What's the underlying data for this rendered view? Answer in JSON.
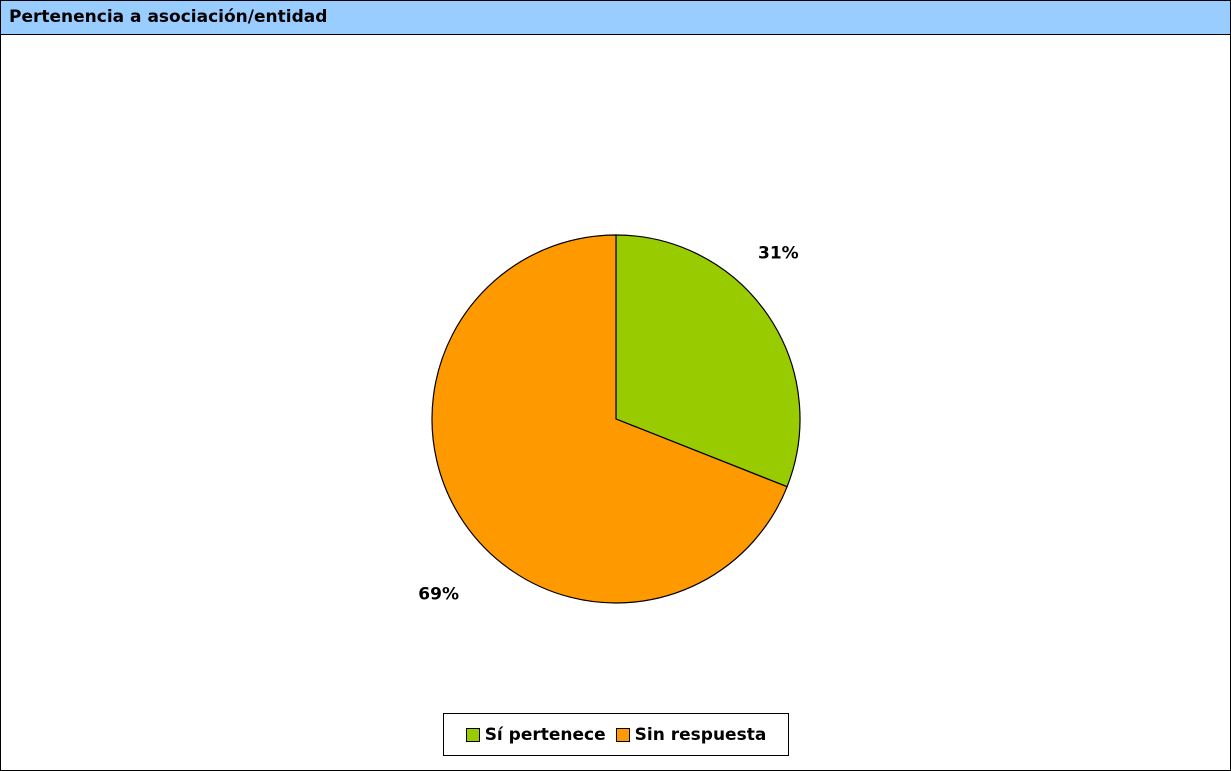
{
  "header": {
    "title": "Pertenencia a asociación/entidad",
    "background": "#99ccff"
  },
  "chart_data": {
    "type": "pie",
    "title": "Pertenencia a asociación/entidad",
    "slices": [
      {
        "label": "Sí pertenece",
        "value": 31,
        "display": "31%",
        "color": "#99cc00"
      },
      {
        "label": "Sin respuesta",
        "value": 69,
        "display": "69%",
        "color": "#ff9900"
      }
    ],
    "legend": {
      "position": "bottom",
      "items": [
        "Sí pertenece",
        "Sin respuesta"
      ]
    }
  }
}
